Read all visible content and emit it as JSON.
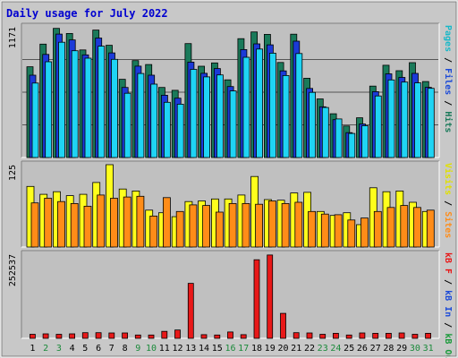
{
  "chart_data": {
    "type": "bar",
    "title": "Daily usage for July 2022",
    "categories": [
      "1",
      "2",
      "3",
      "4",
      "5",
      "6",
      "7",
      "8",
      "9",
      "10",
      "11",
      "12",
      "13",
      "14",
      "15",
      "16",
      "17",
      "18",
      "19",
      "20",
      "21",
      "22",
      "23",
      "24",
      "25",
      "26",
      "27",
      "28",
      "29",
      "30",
      "31"
    ],
    "weekend_days": [
      "2",
      "3",
      "9",
      "10",
      "16",
      "17",
      "23",
      "24",
      "30",
      "31"
    ],
    "panels": [
      {
        "name": "top",
        "y_axis_label": "1171",
        "y_max": 1171,
        "series": [
          {
            "name": "Hits",
            "color": "#1a7a5a",
            "values": [
              813,
              1016,
              1157,
              1112,
              964,
              1142,
              1006,
              701,
              869,
              833,
              628,
              602,
              1021,
              818,
              848,
              696,
              1065,
              1125,
              1104,
              852,
              1105,
              711,
              525,
              392,
              282,
              356,
              640,
              827,
              778,
              850,
              681
            ]
          },
          {
            "name": "Files",
            "color": "#1b3ad8",
            "values": [
              738,
              924,
              1106,
              1054,
              920,
              1071,
              938,
              628,
              819,
              738,
              558,
              532,
              855,
              755,
              797,
              636,
              967,
              1019,
              1010,
              776,
              1043,
              619,
              455,
              339,
              223,
              301,
              590,
              750,
              718,
              754,
              629
            ]
          },
          {
            "name": "Pages",
            "color": "#1fd4f4",
            "values": [
              667,
              858,
              1033,
              957,
              890,
              998,
              880,
              576,
              753,
              658,
              495,
              478,
              790,
              723,
              740,
              597,
              898,
              972,
              935,
              735,
              932,
              584,
              448,
              346,
              216,
              285,
              552,
              695,
              676,
              669,
              620
            ]
          }
        ]
      },
      {
        "name": "middle",
        "y_axis_label": "125",
        "y_max": 125,
        "series": [
          {
            "name": "Visits",
            "color": "#ffff1c",
            "values": [
              92,
              80,
              84,
              78,
              80,
              98,
              125,
              88,
              85,
              56,
              52,
              46,
              69,
              70,
              73,
              73,
              79,
              107,
              72,
              71,
              82,
              83,
              54,
              48,
              52,
              34,
              90,
              84,
              85,
              68,
              54
            ]
          },
          {
            "name": "Sites",
            "color": "#ff8c18",
            "values": [
              67,
              74,
              69,
              66,
              62,
              79,
              74,
              76,
              77,
              47,
              75,
              54,
              64,
              63,
              53,
              66,
              66,
              65,
              70,
              66,
              68,
              54,
              50,
              49,
              41,
              44,
              54,
              60,
              63,
              60,
              56
            ]
          }
        ]
      },
      {
        "name": "bottom",
        "y_axis_label": "252537",
        "y_max": 252537,
        "series": [
          {
            "name": "KBytes",
            "color": "#e81818",
            "values": [
              12000,
              13500,
              12000,
              13500,
              17000,
              17000,
              16000,
              16000,
              10000,
              10000,
              21000,
              25000,
              165000,
              11000,
              10000,
              19000,
              11000,
              236000,
              250000,
              75000,
              17000,
              16000,
              12000,
              15000,
              10000,
              16000,
              15000,
              15000,
              16000,
              12000,
              15000
            ]
          }
        ]
      }
    ],
    "right_legends": [
      [
        {
          "text": "Pages",
          "color": "#18b8c8"
        },
        {
          "text": " / ",
          "color": "#000000"
        },
        {
          "text": "Files",
          "color": "#1b4ad8"
        },
        {
          "text": " / ",
          "color": "#000000"
        },
        {
          "text": "Hits",
          "color": "#1a7a5a"
        }
      ],
      [
        {
          "text": "Visits",
          "color": "#e0e000"
        },
        {
          "text": " / ",
          "color": "#000000"
        },
        {
          "text": "Sites",
          "color": "#ff8c18"
        }
      ],
      [
        {
          "text": "kB F",
          "color": "#e81818"
        },
        {
          "text": " / ",
          "color": "#000000"
        },
        {
          "text": "kB In",
          "color": "#1b4ad8"
        },
        {
          "text": " / ",
          "color": "#000000"
        },
        {
          "text": "kB Out",
          "color": "#1a9a3a"
        }
      ]
    ],
    "colors": {
      "background": "#c8c8c8",
      "panel": "#c0c0c0",
      "title": "#0000d0",
      "weekend_label": "#1a8a3a",
      "weekday_label": "#000000"
    }
  }
}
